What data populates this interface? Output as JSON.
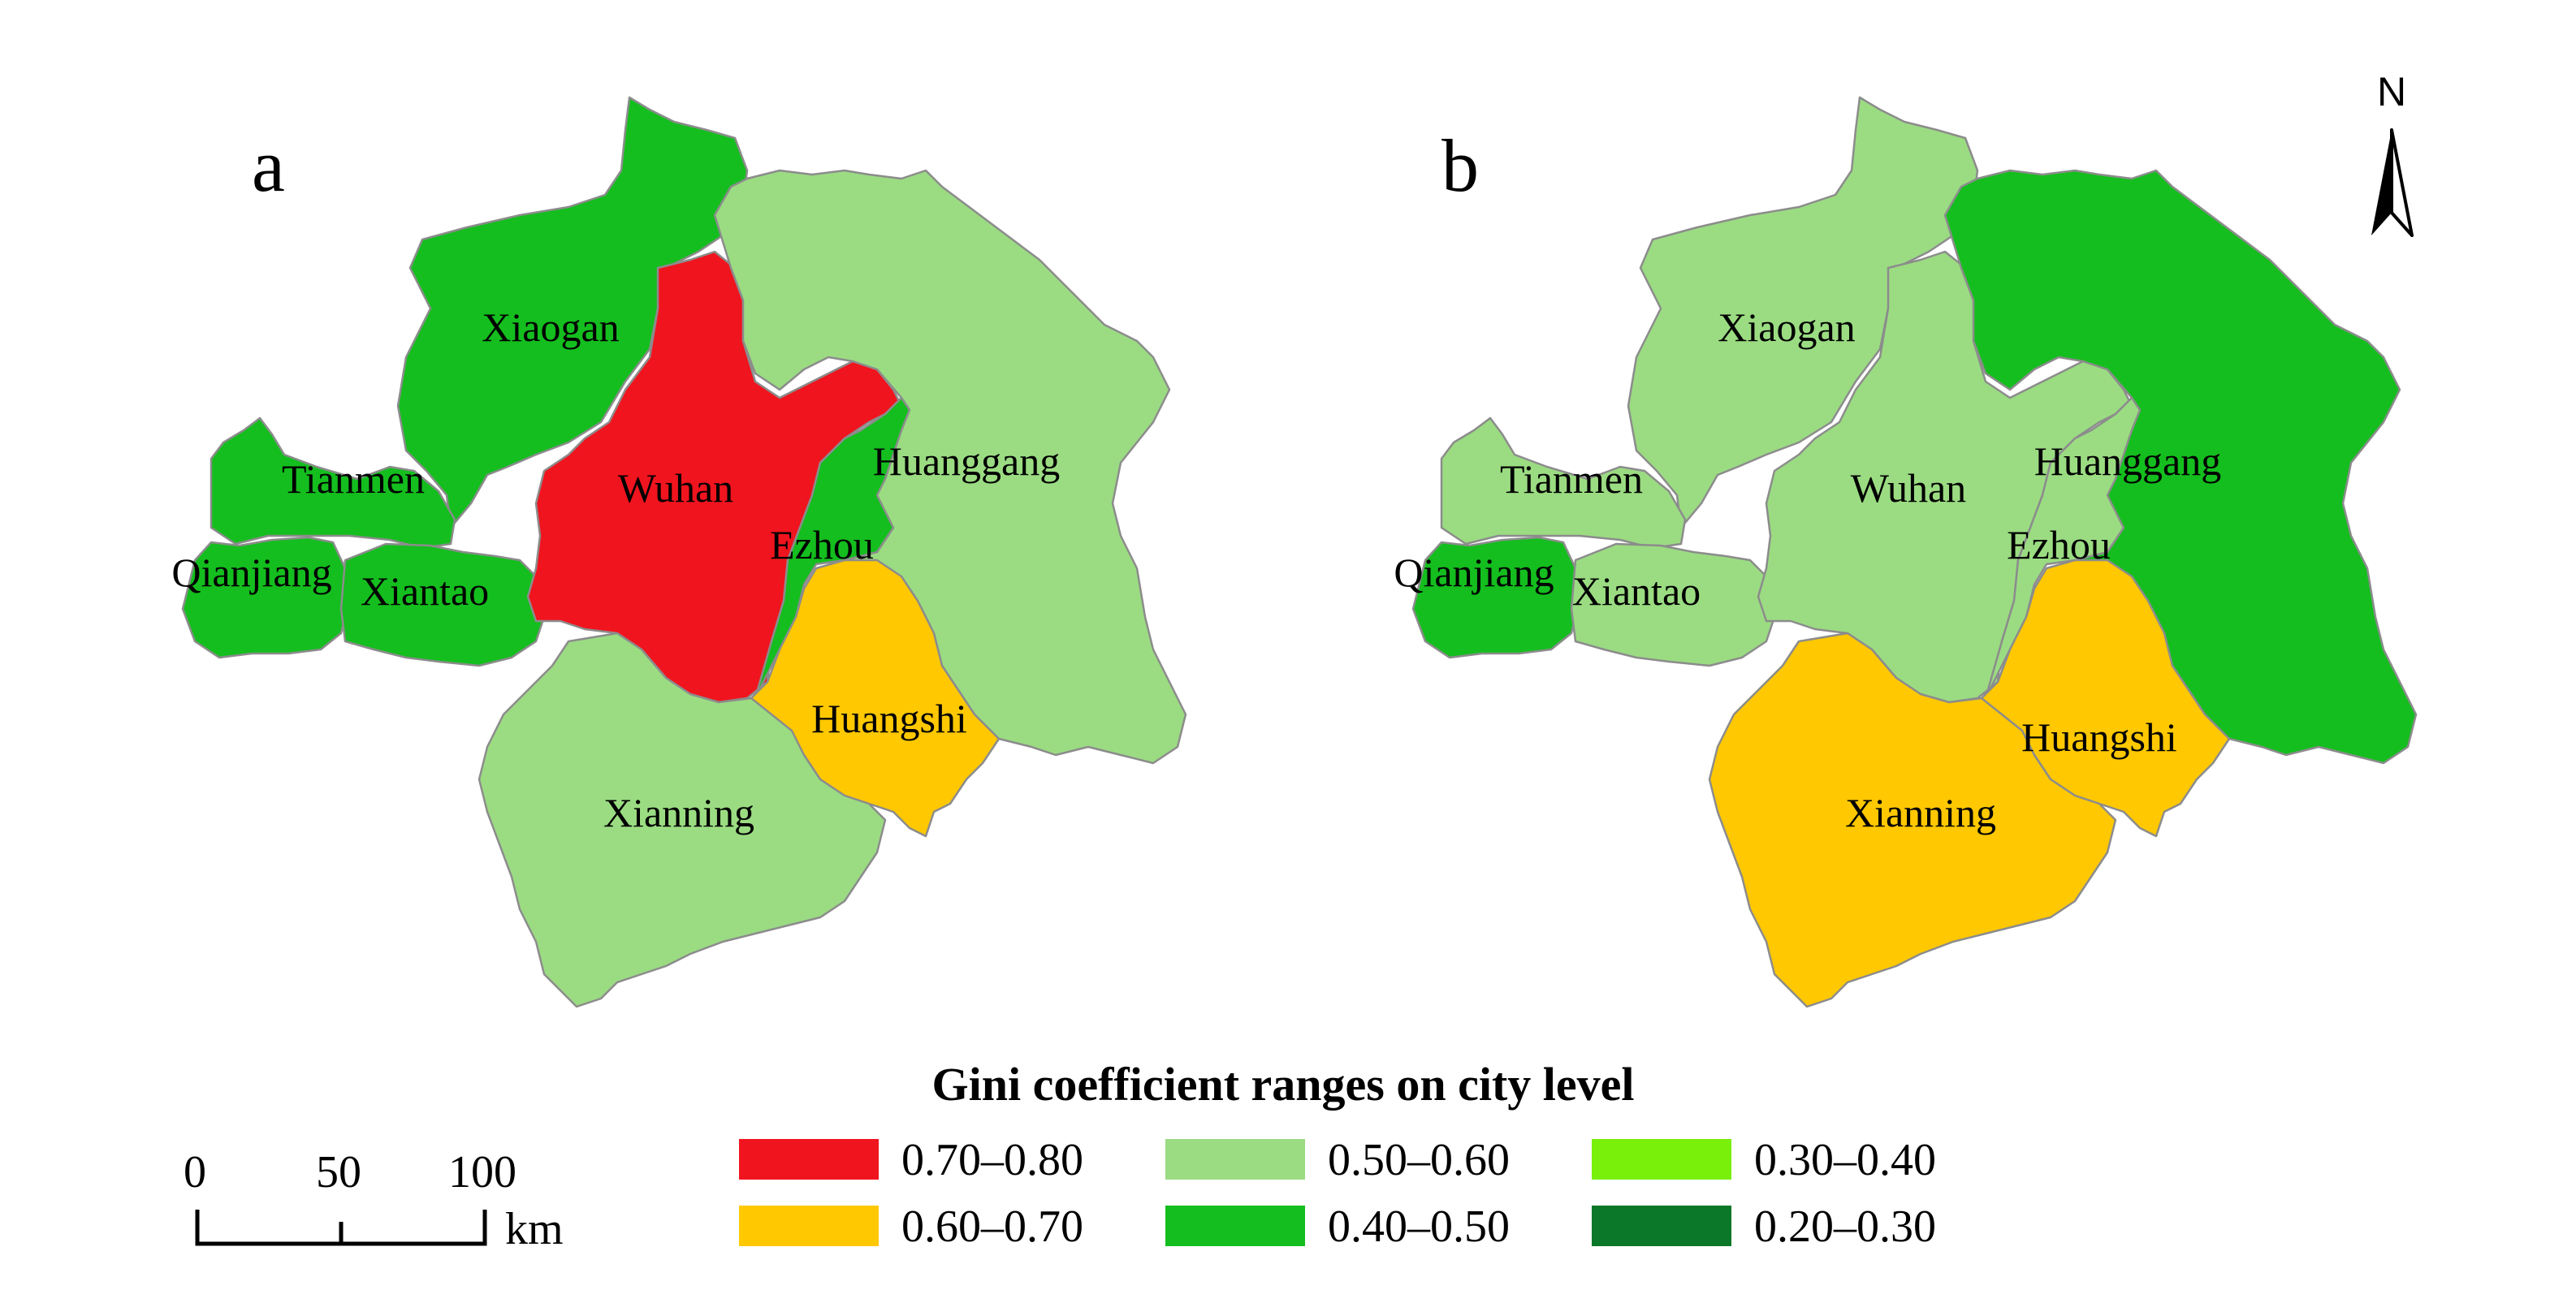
{
  "panels": [
    {
      "letter": "a",
      "cities": [
        {
          "key": "xiaogan",
          "name": "Xiaogan",
          "range": "0.40–0.50"
        },
        {
          "key": "tianmen",
          "name": "Tianmen",
          "range": "0.40–0.50"
        },
        {
          "key": "qianjiang",
          "name": "Qianjiang",
          "range": "0.40–0.50"
        },
        {
          "key": "xiantao",
          "name": "Xiantao",
          "range": "0.40–0.50"
        },
        {
          "key": "wuhan",
          "name": "Wuhan",
          "range": "0.70–0.80"
        },
        {
          "key": "huanggang",
          "name": "Huanggang",
          "range": "0.50–0.60"
        },
        {
          "key": "ezhou",
          "name": "Ezhou",
          "range": "0.40–0.50"
        },
        {
          "key": "huangshi",
          "name": "Huangshi",
          "range": "0.60–0.70"
        },
        {
          "key": "xianning",
          "name": "Xianning",
          "range": "0.50–0.60"
        }
      ]
    },
    {
      "letter": "b",
      "cities": [
        {
          "key": "xiaogan",
          "name": "Xiaogan",
          "range": "0.50–0.60"
        },
        {
          "key": "tianmen",
          "name": "Tianmen",
          "range": "0.50–0.60"
        },
        {
          "key": "qianjiang",
          "name": "Qianjiang",
          "range": "0.40–0.50"
        },
        {
          "key": "xiantao",
          "name": "Xiantao",
          "range": "0.50–0.60"
        },
        {
          "key": "wuhan",
          "name": "Wuhan",
          "range": "0.50–0.60"
        },
        {
          "key": "huanggang",
          "name": "Huanggang",
          "range": "0.40–0.50"
        },
        {
          "key": "ezhou",
          "name": "Ezhou",
          "range": "0.50–0.60"
        },
        {
          "key": "huangshi",
          "name": "Huangshi",
          "range": "0.60–0.70"
        },
        {
          "key": "xianning",
          "name": "Xianning",
          "range": "0.60–0.70"
        }
      ]
    }
  ],
  "legend": {
    "title": "Gini coefficient ranges on city level",
    "items": [
      {
        "label": "0.70–0.80",
        "color": "#f0141e"
      },
      {
        "label": "0.60–0.70",
        "color": "#ffc800"
      },
      {
        "label": "0.50–0.60",
        "color": "#9bdc82"
      },
      {
        "label": "0.40–0.50",
        "color": "#14be1e"
      },
      {
        "label": "0.30–0.40",
        "color": "#78f00a"
      },
      {
        "label": "0.20–0.30",
        "color": "#0a7828"
      }
    ]
  },
  "scale_bar": {
    "ticks": [
      "0",
      "50",
      "100"
    ],
    "unit": "km"
  },
  "north_arrow": {
    "label": "N"
  }
}
